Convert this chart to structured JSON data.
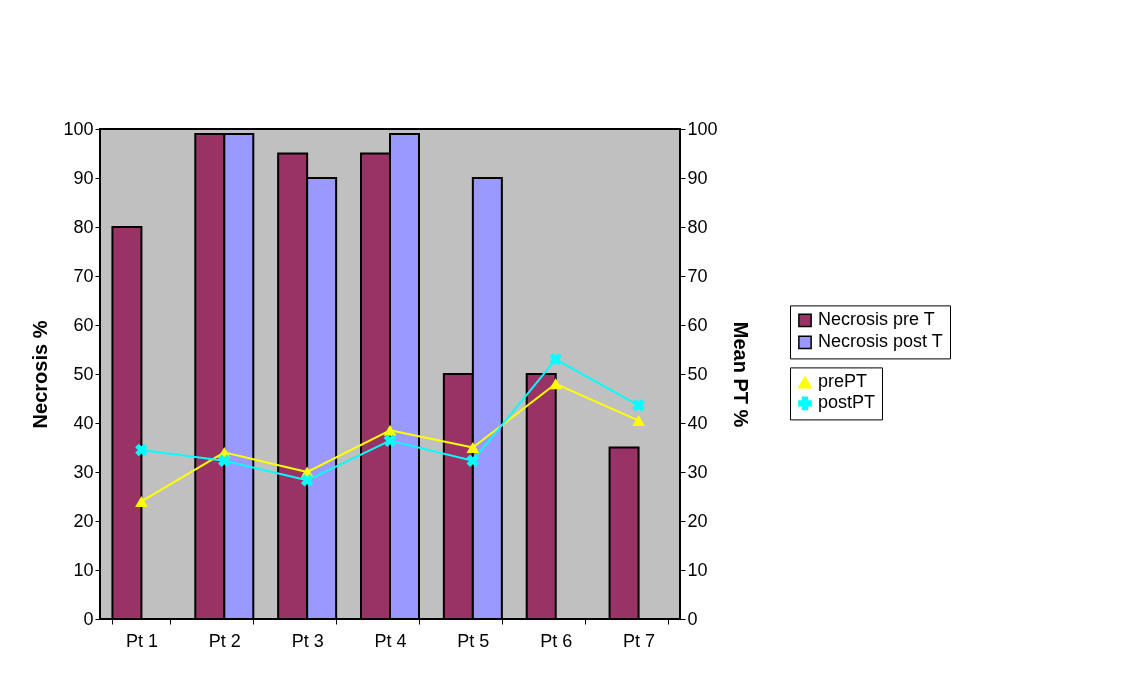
{
  "chart_data": {
    "type": "bar",
    "categories": [
      "Pt 1",
      "Pt 2",
      "Pt 3",
      "Pt 4",
      "Pt 5",
      "Pt 6",
      "Pt 7"
    ],
    "ylabel": "Necrosis %",
    "y2label": "Mean PT %",
    "ylim": [
      0,
      100
    ],
    "yticks": [
      0,
      10,
      20,
      30,
      40,
      50,
      60,
      70,
      80,
      90,
      100
    ],
    "y2lim": [
      0,
      100
    ],
    "y2ticks": [
      0,
      10,
      20,
      30,
      40,
      50,
      60,
      70,
      80,
      90,
      100
    ],
    "legend": "right",
    "series": [
      {
        "name": "Necrosis pre T",
        "color": "#993366",
        "values": [
          80,
          99,
          95,
          95,
          50,
          50,
          35
        ]
      },
      {
        "name": "Necrosis post T",
        "color": "#9999ff",
        "values": [
          null,
          99,
          90,
          99,
          90,
          null,
          null
        ]
      },
      {
        "name": "prePT",
        "type": "line",
        "axis": "y2",
        "marker": "triangle",
        "color": "#ffff00",
        "values": [
          24,
          34,
          30,
          38.5,
          35,
          48,
          40.5
        ]
      },
      {
        "name": "postPT",
        "type": "line",
        "axis": "y2",
        "marker": "cross",
        "color": "#00ffff",
        "values": [
          34.5,
          32.3,
          28.3,
          36.4,
          32.3,
          53,
          43.6
        ]
      }
    ]
  }
}
